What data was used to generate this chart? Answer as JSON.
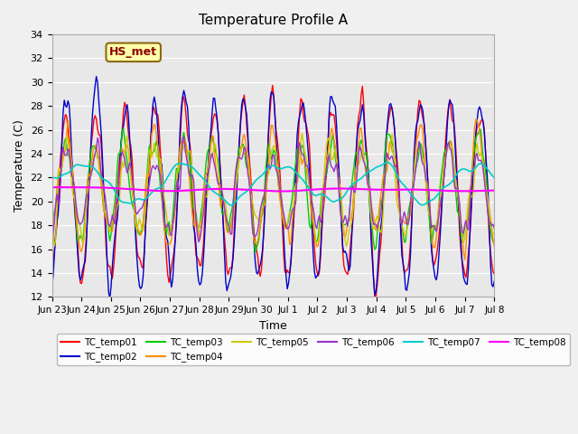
{
  "title": "Temperature Profile A",
  "xlabel": "Time",
  "ylabel": "Temperature (C)",
  "ylim": [
    12,
    34
  ],
  "yticks": [
    12,
    14,
    16,
    18,
    20,
    22,
    24,
    26,
    28,
    30,
    32,
    34
  ],
  "annotation_text": "HS_met",
  "annotation_color": "#8B0000",
  "annotation_bg": "#FFFFAA",
  "annotation_border": "#8B6914",
  "bg_color": "#E8E8E8",
  "series_colors": {
    "TC_temp01": "#FF0000",
    "TC_temp02": "#0000CD",
    "TC_temp03": "#00CC00",
    "TC_temp04": "#FF8C00",
    "TC_temp05": "#CCCC00",
    "TC_temp06": "#9932CC",
    "TC_temp07": "#00CCCC",
    "TC_temp08": "#FF00FF"
  },
  "xtick_labels": [
    "Jun 23",
    "Jun 24",
    "Jun 25",
    "Jun 26",
    "Jun 27",
    "Jun 28",
    "Jun 29",
    "Jun 30",
    "Jul 1",
    "Jul 2",
    "Jul 3",
    "Jul 4",
    "Jul 5",
    "Jul 6",
    "Jul 7",
    "Jul 8"
  ],
  "n_points": 384,
  "seed": 42
}
